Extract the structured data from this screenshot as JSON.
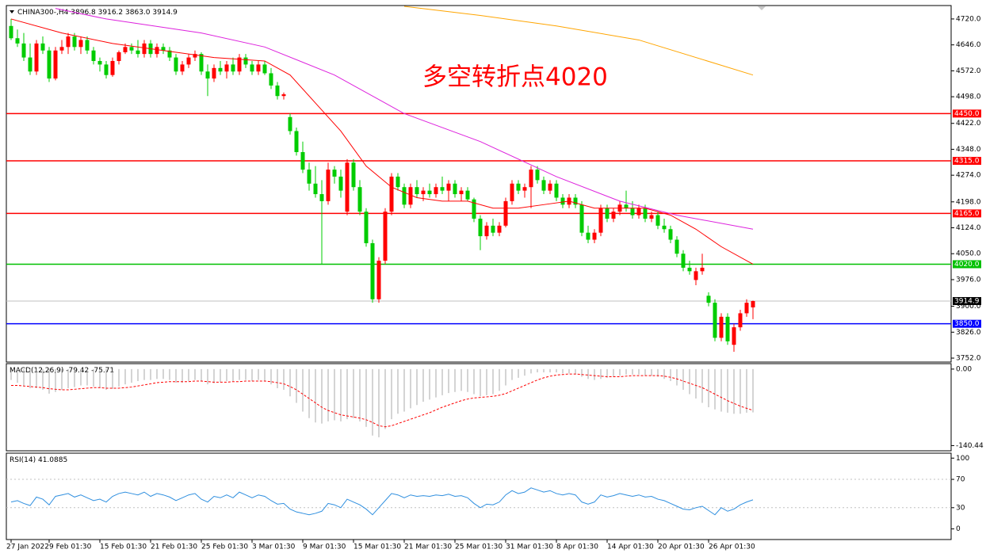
{
  "chart_data": {
    "type": "candlestick",
    "symbol": "CHINA300-,H4",
    "ohlc_labels": [
      "3896.8",
      "3916.2",
      "3863.0",
      "3914.9"
    ],
    "annotation": "多空转折点4020",
    "up_color": "#ff0000",
    "down_color": "#00cc00",
    "categories": [
      "27 Jan 2022",
      null,
      null,
      null,
      null,
      null,
      "9 Feb 01:30",
      null,
      null,
      null,
      null,
      null,
      null,
      null,
      "15 Feb 01:30",
      null,
      null,
      null,
      null,
      null,
      null,
      null,
      "21 Feb 01:30",
      null,
      null,
      null,
      null,
      null,
      null,
      null,
      "25 Feb 01:30",
      null,
      null,
      null,
      null,
      null,
      null,
      null,
      "3 Mar 01:30",
      null,
      null,
      null,
      null,
      null,
      null,
      null,
      "9 Mar 01:30",
      null,
      null,
      null,
      null,
      null,
      null,
      null,
      "15 Mar 01:30",
      null,
      null,
      null,
      null,
      null,
      null,
      null,
      "21 Mar 01:30",
      null,
      null,
      null,
      null,
      null,
      null,
      null,
      "25 Mar 01:30",
      null,
      null,
      null,
      null,
      null,
      null,
      null,
      "31 Mar 01:30",
      null,
      null,
      null,
      null,
      null,
      null,
      null,
      "8 Apr 01:30",
      null,
      null,
      null,
      null,
      null,
      null,
      null,
      "14 Apr 01:30",
      null,
      null,
      null,
      null,
      null,
      null,
      null,
      "20 Apr 01:30",
      null,
      null,
      null,
      null,
      null,
      null,
      null,
      "26 Apr 01:30",
      null,
      null,
      null,
      null,
      null,
      null,
      null
    ],
    "candles": [
      [
        4700,
        4720,
        4660,
        4665
      ],
      [
        4665,
        4690,
        4640,
        4650
      ],
      [
        4650,
        4680,
        4600,
        4610
      ],
      [
        4610,
        4650,
        4560,
        4570
      ],
      [
        4570,
        4660,
        4560,
        4650
      ],
      [
        4650,
        4670,
        4620,
        4630
      ],
      [
        4630,
        4640,
        4540,
        4550
      ],
      [
        4550,
        4640,
        4545,
        4630
      ],
      [
        4630,
        4660,
        4620,
        4640
      ],
      [
        4640,
        4680,
        4620,
        4670
      ],
      [
        4670,
        4680,
        4630,
        4640
      ],
      [
        4640,
        4670,
        4620,
        4660
      ],
      [
        4660,
        4670,
        4620,
        4630
      ],
      [
        4630,
        4640,
        4590,
        4600
      ],
      [
        4600,
        4610,
        4570,
        4590
      ],
      [
        4590,
        4600,
        4550,
        4560
      ],
      [
        4560,
        4610,
        4555,
        4600
      ],
      [
        4600,
        4630,
        4590,
        4625
      ],
      [
        4625,
        4650,
        4620,
        4640
      ],
      [
        4640,
        4650,
        4620,
        4630
      ],
      [
        4630,
        4660,
        4610,
        4620
      ],
      [
        4620,
        4660,
        4610,
        4650
      ],
      [
        4650,
        4660,
        4610,
        4620
      ],
      [
        4620,
        4650,
        4610,
        4640
      ],
      [
        4640,
        4650,
        4620,
        4630
      ],
      [
        4630,
        4640,
        4600,
        4610
      ],
      [
        4610,
        4620,
        4560,
        4570
      ],
      [
        4570,
        4600,
        4560,
        4590
      ],
      [
        4590,
        4620,
        4580,
        4610
      ],
      [
        4610,
        4630,
        4600,
        4620
      ],
      [
        4620,
        4625,
        4560,
        4570
      ],
      [
        4570,
        4590,
        4500,
        4550
      ],
      [
        4550,
        4590,
        4540,
        4580
      ],
      [
        4580,
        4600,
        4560,
        4570
      ],
      [
        4570,
        4600,
        4550,
        4590
      ],
      [
        4590,
        4610,
        4560,
        4570
      ],
      [
        4570,
        4620,
        4560,
        4610
      ],
      [
        4610,
        4620,
        4580,
        4590
      ],
      [
        4590,
        4600,
        4560,
        4570
      ],
      [
        4570,
        4600,
        4560,
        4590
      ],
      [
        4590,
        4600,
        4560,
        4565
      ],
      [
        4565,
        4580,
        4520,
        4530
      ],
      [
        4530,
        4540,
        4490,
        4500
      ],
      [
        4500,
        4510,
        4490,
        4505
      ],
      [
        4440,
        4450,
        4390,
        4400
      ],
      [
        4400,
        4410,
        4330,
        4340
      ],
      [
        4340,
        4370,
        4280,
        4290
      ],
      [
        4290,
        4310,
        4230,
        4250
      ],
      [
        4250,
        4300,
        4210,
        4220
      ],
      [
        4220,
        4260,
        4020,
        4200
      ],
      [
        4200,
        4310,
        4190,
        4290
      ],
      [
        4290,
        4300,
        4250,
        4270
      ],
      [
        4270,
        4290,
        4210,
        4230
      ],
      [
        4170,
        4320,
        4160,
        4310
      ],
      [
        4310,
        4320,
        4230,
        4240
      ],
      [
        4240,
        4260,
        4160,
        4170
      ],
      [
        4170,
        4180,
        4070,
        4080
      ],
      [
        4080,
        4090,
        3910,
        3920
      ],
      [
        3920,
        4040,
        3910,
        4030
      ],
      [
        4030,
        4180,
        4020,
        4170
      ],
      [
        4170,
        4280,
        4160,
        4270
      ],
      [
        4270,
        4280,
        4230,
        4240
      ],
      [
        4240,
        4250,
        4180,
        4190
      ],
      [
        4190,
        4250,
        4180,
        4240
      ],
      [
        4240,
        4260,
        4210,
        4220
      ],
      [
        4220,
        4240,
        4200,
        4230
      ],
      [
        4230,
        4250,
        4210,
        4220
      ],
      [
        4220,
        4250,
        4210,
        4240
      ],
      [
        4240,
        4270,
        4220,
        4230
      ],
      [
        4230,
        4260,
        4200,
        4250
      ],
      [
        4250,
        4260,
        4210,
        4220
      ],
      [
        4220,
        4240,
        4200,
        4230
      ],
      [
        4230,
        4240,
        4200,
        4205
      ],
      [
        4205,
        4210,
        4140,
        4150
      ],
      [
        4150,
        4160,
        4060,
        4100
      ],
      [
        4100,
        4140,
        4090,
        4130
      ],
      [
        4130,
        4150,
        4100,
        4110
      ],
      [
        4110,
        4140,
        4100,
        4130
      ],
      [
        4130,
        4210,
        4125,
        4200
      ],
      [
        4200,
        4260,
        4190,
        4250
      ],
      [
        4250,
        4260,
        4220,
        4230
      ],
      [
        4230,
        4250,
        4210,
        4240
      ],
      [
        4240,
        4300,
        4180,
        4290
      ],
      [
        4290,
        4300,
        4250,
        4260
      ],
      [
        4260,
        4270,
        4220,
        4230
      ],
      [
        4230,
        4260,
        4220,
        4250
      ],
      [
        4250,
        4260,
        4200,
        4210
      ],
      [
        4210,
        4220,
        4180,
        4190
      ],
      [
        4190,
        4220,
        4180,
        4210
      ],
      [
        4210,
        4220,
        4180,
        4190
      ],
      [
        4190,
        4200,
        4100,
        4110
      ],
      [
        4110,
        4130,
        4080,
        4090
      ],
      [
        4090,
        4120,
        4080,
        4110
      ],
      [
        4110,
        4190,
        4100,
        4180
      ],
      [
        4180,
        4190,
        4140,
        4150
      ],
      [
        4150,
        4180,
        4140,
        4170
      ],
      [
        4170,
        4200,
        4160,
        4190
      ],
      [
        4190,
        4230,
        4170,
        4180
      ],
      [
        4180,
        4200,
        4150,
        4160
      ],
      [
        4160,
        4190,
        4150,
        4180
      ],
      [
        4180,
        4190,
        4140,
        4150
      ],
      [
        4150,
        4170,
        4140,
        4160
      ],
      [
        4160,
        4170,
        4120,
        4130
      ],
      [
        4130,
        4150,
        4110,
        4120
      ],
      [
        4120,
        4130,
        4080,
        4090
      ],
      [
        4090,
        4100,
        4040,
        4050
      ],
      [
        4050,
        4060,
        4000,
        4010
      ],
      [
        4010,
        4030,
        3990,
        4000
      ],
      [
        3975,
        4010,
        3960,
        4000
      ],
      [
        4000,
        4050,
        3990,
        4010
      ],
      [
        3930,
        3940,
        3900,
        3910
      ],
      [
        3910,
        3920,
        3800,
        3810
      ],
      [
        3810,
        3880,
        3800,
        3870
      ],
      [
        3870,
        3880,
        3790,
        3800
      ],
      [
        3790,
        3850,
        3770,
        3840
      ],
      [
        3840,
        3890,
        3830,
        3880
      ],
      [
        3880,
        3920,
        3870,
        3910
      ],
      [
        3896.8,
        3916.2,
        3863.0,
        3914.9
      ]
    ],
    "ylim": [
      3743,
      4756
    ],
    "yticks": [
      {
        "value": 4720,
        "label": "4720.0"
      },
      {
        "value": 4646,
        "label": "4646.0"
      },
      {
        "value": 4572,
        "label": "4572.0"
      },
      {
        "value": 4498,
        "label": "4498.0"
      },
      {
        "value": 4422,
        "label": "4422.0"
      },
      {
        "value": 4348,
        "label": "4348.0"
      },
      {
        "value": 4274,
        "label": "4274.0"
      },
      {
        "value": 4198,
        "label": "4198.0"
      },
      {
        "value": 4124,
        "label": "4124.0"
      },
      {
        "value": 4050,
        "label": "4050.0"
      },
      {
        "value": 3976,
        "label": "3976.0"
      },
      {
        "value": 3900,
        "label": "3900.0"
      },
      {
        "value": 3826,
        "label": "3826.0"
      },
      {
        "value": 3752,
        "label": "3752.0"
      }
    ],
    "levels": [
      {
        "value": 4450,
        "label": "4450.0",
        "color": "#ff0000"
      },
      {
        "value": 4315,
        "label": "4315.0",
        "color": "#ff0000"
      },
      {
        "value": 4165,
        "label": "4165.0",
        "color": "#ff0000"
      },
      {
        "value": 4020,
        "label": "4020.0",
        "color": "#00c000"
      },
      {
        "value": 3850,
        "label": "3850.0",
        "color": "#0000ff"
      }
    ],
    "moving_averages": [
      {
        "color": "#ff0000",
        "x": [
          0,
          8,
          16,
          24,
          32,
          40,
          44,
          48,
          52,
          56,
          60,
          64,
          68,
          72,
          76,
          80,
          84,
          88,
          92,
          96,
          100,
          104,
          108,
          112,
          117
        ],
        "values": [
          4720,
          4680,
          4650,
          4630,
          4610,
          4600,
          4560,
          4480,
          4400,
          4300,
          4240,
          4210,
          4200,
          4200,
          4180,
          4180,
          4190,
          4200,
          4180,
          4180,
          4180,
          4160,
          4120,
          4070,
          4020
        ]
      },
      {
        "color": "#dd22dd",
        "x": [
          7,
          15,
          30,
          40,
          51,
          62,
          74,
          86,
          96,
          105,
          117
        ],
        "values": [
          4750,
          4720,
          4680,
          4640,
          4560,
          4450,
          4370,
          4270,
          4200,
          4160,
          4120
        ]
      },
      {
        "color": "#ffa500",
        "x": [
          62,
          74,
          86,
          99,
          117
        ],
        "values": [
          4756,
          4730,
          4700,
          4660,
          4560
        ]
      }
    ],
    "macd": {
      "name": "MACD(12,26,9)",
      "ylim": [
        -150,
        10
      ],
      "yticks": [
        {
          "value": 0,
          "label": "0.00"
        },
        -140.44
      ],
      "signal_color": "#ff0000",
      "hist_color": "#a8a8a8",
      "hist": [
        -20,
        -25,
        -30,
        -35,
        -35,
        -38,
        -45,
        -42,
        -38,
        -35,
        -33,
        -30,
        -30,
        -32,
        -35,
        -38,
        -36,
        -32,
        -28,
        -25,
        -22,
        -20,
        -20,
        -18,
        -18,
        -20,
        -25,
        -25,
        -22,
        -20,
        -22,
        -28,
        -26,
        -24,
        -22,
        -22,
        -20,
        -20,
        -22,
        -20,
        -22,
        -28,
        -35,
        -38,
        -50,
        -62,
        -78,
        -90,
        -98,
        -100,
        -96,
        -94,
        -96,
        -92,
        -90,
        -96,
        -106,
        -122,
        -125,
        -110,
        -92,
        -82,
        -78,
        -72,
        -66,
        -60,
        -56,
        -52,
        -48,
        -44,
        -42,
        -40,
        -42,
        -46,
        -50,
        -48,
        -46,
        -40,
        -30,
        -20,
        -16,
        -12,
        -8,
        -6,
        -6,
        -6,
        -6,
        -8,
        -8,
        -10,
        -14,
        -18,
        -20,
        -18,
        -16,
        -14,
        -12,
        -10,
        -10,
        -10,
        -12,
        -12,
        -14,
        -18,
        -22,
        -30,
        -38,
        -46,
        -54,
        -62,
        -70,
        -74,
        -78,
        -80,
        -82,
        -82,
        -80,
        -79.42
      ],
      "signal": [
        -30,
        -30,
        -31,
        -32,
        -33,
        -34,
        -36,
        -37,
        -38,
        -38,
        -37,
        -36,
        -35,
        -34,
        -34,
        -35,
        -35,
        -35,
        -34,
        -33,
        -31,
        -29,
        -27,
        -25,
        -24,
        -23,
        -23,
        -23,
        -23,
        -22,
        -22,
        -23,
        -24,
        -24,
        -24,
        -23,
        -23,
        -22,
        -22,
        -22,
        -22,
        -23,
        -25,
        -27,
        -32,
        -38,
        -46,
        -54,
        -62,
        -70,
        -76,
        -80,
        -84,
        -86,
        -88,
        -90,
        -93,
        -98,
        -104,
        -106,
        -104,
        -100,
        -96,
        -92,
        -88,
        -84,
        -80,
        -75,
        -70,
        -66,
        -62,
        -58,
        -55,
        -53,
        -52,
        -51,
        -50,
        -48,
        -45,
        -40,
        -35,
        -30,
        -25,
        -20,
        -16,
        -13,
        -11,
        -10,
        -9,
        -9,
        -10,
        -11,
        -12,
        -13,
        -14,
        -14,
        -14,
        -13,
        -12,
        -12,
        -12,
        -12,
        -12,
        -13,
        -15,
        -18,
        -22,
        -26,
        -30,
        -34,
        -40,
        -46,
        -52,
        -58,
        -63,
        -68,
        -72,
        -75.71
      ]
    },
    "rsi": {
      "name": "RSI(14)",
      "ylim": [
        -15,
        107
      ],
      "yticks": [
        100,
        70,
        30,
        0
      ],
      "levels": [
        70,
        30
      ],
      "color": "#2f8fdf",
      "values": [
        38,
        40,
        36,
        33,
        45,
        42,
        34,
        46,
        48,
        50,
        45,
        48,
        44,
        40,
        42,
        38,
        46,
        50,
        52,
        50,
        48,
        52,
        46,
        50,
        48,
        45,
        40,
        44,
        48,
        50,
        42,
        38,
        46,
        44,
        48,
        44,
        52,
        48,
        44,
        48,
        46,
        40,
        35,
        36,
        28,
        24,
        22,
        20,
        22,
        25,
        36,
        34,
        30,
        42,
        38,
        34,
        28,
        20,
        30,
        40,
        50,
        48,
        44,
        48,
        46,
        47,
        46,
        48,
        47,
        49,
        46,
        47,
        44,
        36,
        30,
        35,
        34,
        38,
        48,
        54,
        50,
        52,
        58,
        55,
        52,
        54,
        50,
        48,
        50,
        48,
        38,
        35,
        38,
        48,
        45,
        47,
        50,
        48,
        46,
        48,
        45,
        46,
        42,
        40,
        36,
        32,
        28,
        27,
        30,
        32,
        26,
        20,
        30,
        25,
        28,
        34,
        38,
        41.0885
      ]
    }
  }
}
